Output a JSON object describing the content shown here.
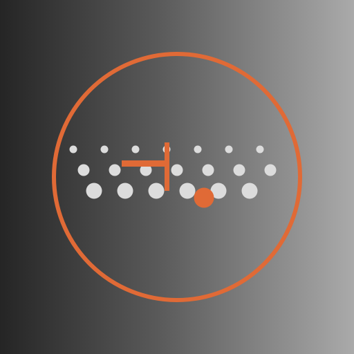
{
  "colors": {
    "accent": "#e06a36",
    "dot": "#dcdcdc",
    "background_left": "#252525",
    "background_right": "#aaaaaa"
  },
  "icons": {
    "main": "dot-grid-logo-icon"
  }
}
